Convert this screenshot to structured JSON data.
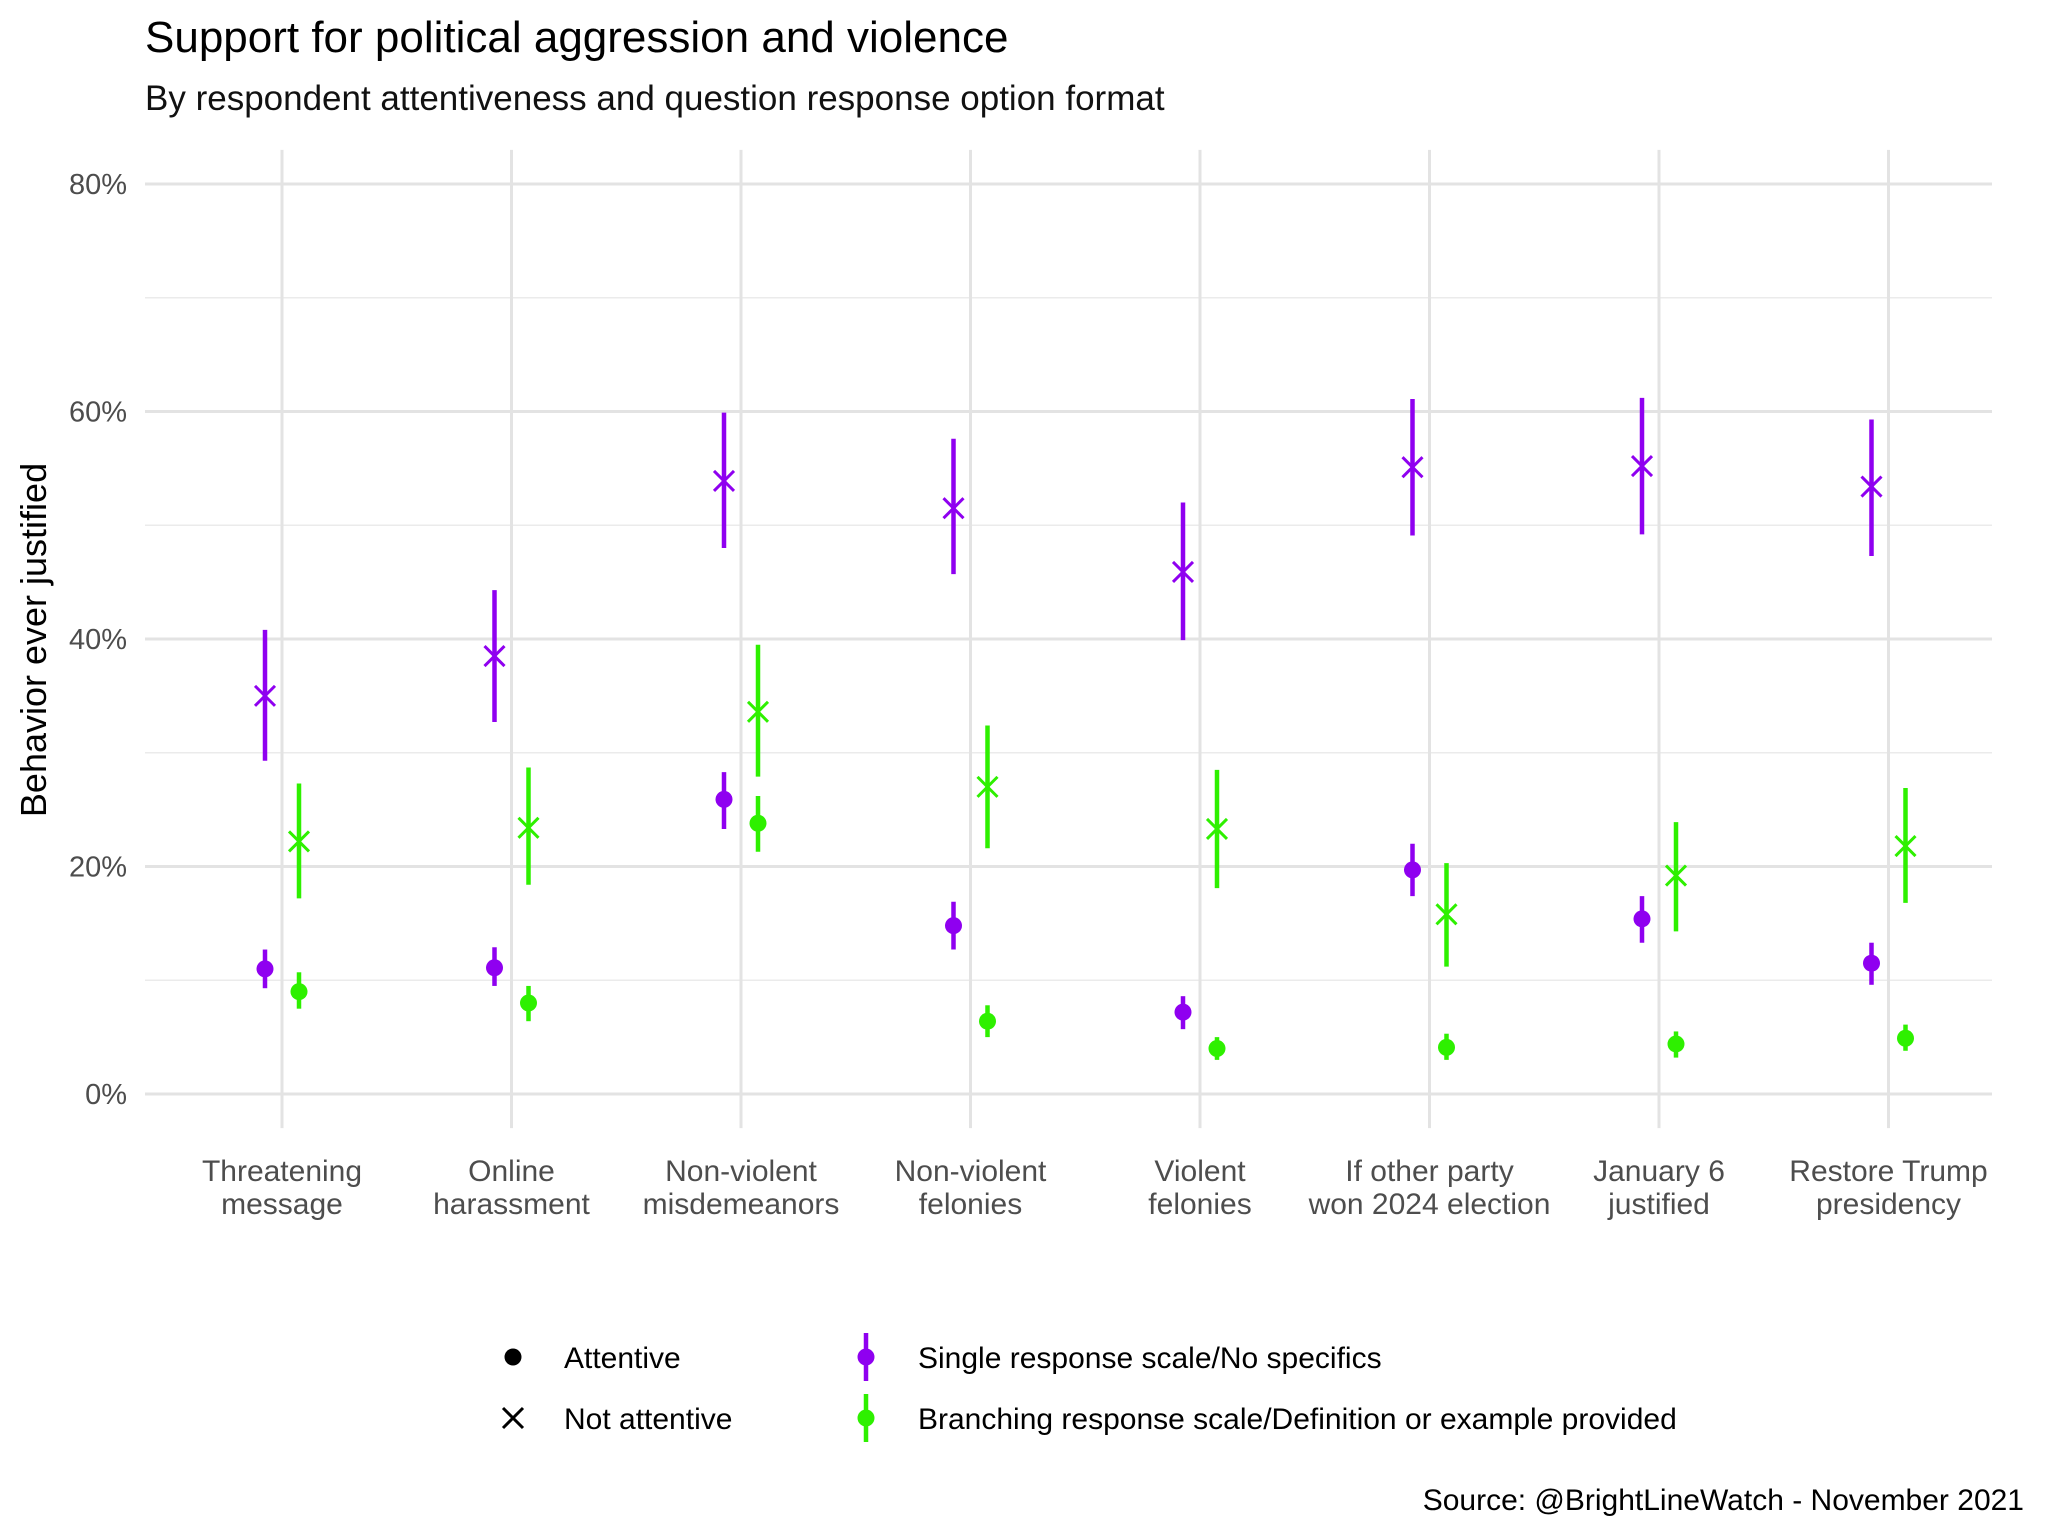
{
  "chart_data": {
    "type": "scatter",
    "title": "Support for political aggression and violence",
    "subtitle": "By respondent attentiveness and question response option format",
    "xlabel": "",
    "ylabel": "Behavior ever justified",
    "ylim": [
      -3,
      83
    ],
    "yticks": [
      0,
      20,
      40,
      60,
      80
    ],
    "ytick_labels": [
      "0%",
      "20%",
      "40%",
      "60%",
      "80%"
    ],
    "grid": true,
    "categories": [
      [
        "Threatening",
        "message"
      ],
      [
        "Online",
        "harassment"
      ],
      [
        "Non-violent",
        "misdemeanors"
      ],
      [
        "Non-violent",
        "felonies"
      ],
      [
        "Violent",
        "felonies"
      ],
      [
        "If other party",
        "won 2024 election"
      ],
      [
        "January 6",
        "justified"
      ],
      [
        "Restore Trump",
        "presidency"
      ]
    ],
    "colors": {
      "single": "#8F00F0",
      "branching": "#2EF000"
    },
    "series": [
      {
        "name": "Single response scale/No specifics - Attentive",
        "format": "single",
        "attentive": true,
        "values": [
          11.0,
          11.1,
          25.9,
          14.8,
          7.2,
          19.7,
          15.4,
          11.5
        ],
        "low": [
          9.3,
          9.5,
          23.3,
          12.7,
          5.7,
          17.4,
          13.3,
          9.6
        ],
        "high": [
          12.7,
          12.9,
          28.3,
          16.9,
          8.6,
          22.0,
          17.4,
          13.3
        ]
      },
      {
        "name": "Single response scale/No specifics - Not attentive",
        "format": "single",
        "attentive": false,
        "values": [
          35.0,
          38.5,
          53.9,
          51.5,
          45.9,
          55.1,
          55.2,
          53.4
        ],
        "low": [
          29.3,
          32.7,
          48.0,
          45.7,
          39.9,
          49.1,
          49.2,
          47.3
        ],
        "high": [
          40.8,
          44.3,
          59.9,
          57.6,
          52.0,
          61.1,
          61.2,
          59.3
        ]
      },
      {
        "name": "Branching response scale/Definition or example provided - Attentive",
        "format": "branching",
        "attentive": true,
        "values": [
          9.0,
          8.0,
          23.8,
          6.4,
          4.0,
          4.1,
          4.4,
          4.9
        ],
        "low": [
          7.5,
          6.4,
          21.3,
          5.0,
          3.0,
          3.0,
          3.2,
          3.8
        ],
        "high": [
          10.7,
          9.5,
          26.2,
          7.8,
          5.0,
          5.3,
          5.5,
          6.1
        ]
      },
      {
        "name": "Branching response scale/Definition or example provided - Not attentive",
        "format": "branching",
        "attentive": false,
        "values": [
          22.2,
          23.4,
          33.6,
          27.0,
          23.3,
          15.8,
          19.2,
          21.8
        ],
        "low": [
          17.2,
          18.4,
          27.9,
          21.6,
          18.1,
          11.2,
          14.3,
          16.8
        ],
        "high": [
          27.3,
          28.7,
          39.5,
          32.4,
          28.5,
          20.3,
          23.9,
          26.9
        ]
      }
    ],
    "legend": {
      "placement": "bottom",
      "shape": [
        "Attentive",
        "Not attentive"
      ],
      "color": [
        "Single response scale/No specifics",
        "Branching response scale/Definition or example provided"
      ]
    },
    "source": "Source: @BrightLineWatch - November 2021"
  }
}
